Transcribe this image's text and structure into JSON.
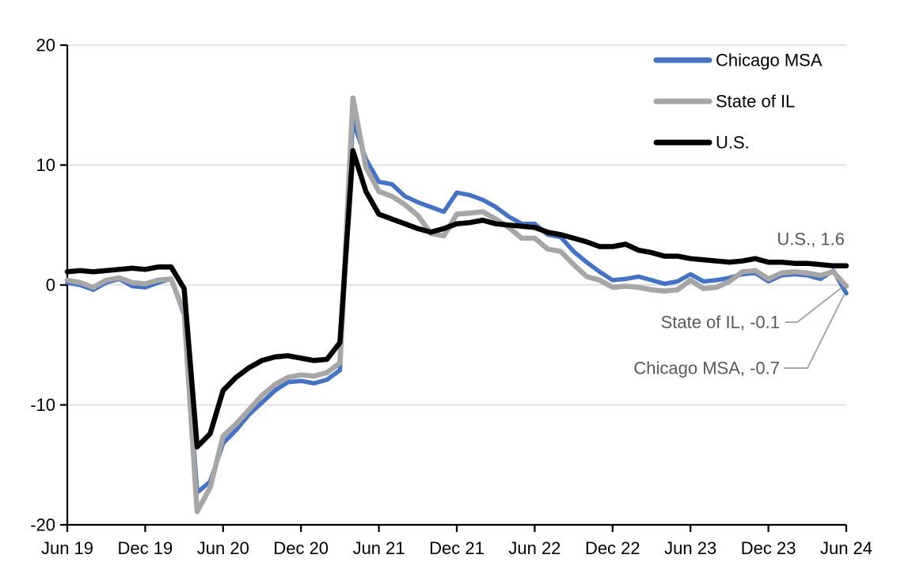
{
  "chart_data": {
    "type": "line",
    "title": "",
    "xlabel": "",
    "ylabel": "",
    "ylim": [
      -20,
      20
    ],
    "y_ticks": [
      -20,
      -10,
      0,
      10,
      20
    ],
    "y_tick_labels": [
      "-20",
      "-10",
      "0",
      "10",
      "20"
    ],
    "x_tick_labels": [
      "Jun 19",
      "Dec 19",
      "Jun 20",
      "Dec 20",
      "Jun 21",
      "Dec 21",
      "Jun 22",
      "Dec 22",
      "Jun 23",
      "Dec 23",
      "Jun 24"
    ],
    "grid": "horizontal",
    "legend_position": "top-right",
    "months": [
      "Jun 19",
      "Jul 19",
      "Aug 19",
      "Sep 19",
      "Oct 19",
      "Nov 19",
      "Dec 19",
      "Jan 20",
      "Feb 20",
      "Mar 20",
      "Apr 20",
      "May 20",
      "Jun 20",
      "Jul 20",
      "Aug 20",
      "Sep 20",
      "Oct 20",
      "Nov 20",
      "Dec 20",
      "Jan 21",
      "Feb 21",
      "Mar 21",
      "Apr 21",
      "May 21",
      "Jun 21",
      "Jul 21",
      "Aug 21",
      "Sep 21",
      "Oct 21",
      "Nov 21",
      "Dec 21",
      "Jan 22",
      "Feb 22",
      "Mar 22",
      "Apr 22",
      "May 22",
      "Jun 22",
      "Jul 22",
      "Aug 22",
      "Sep 22",
      "Oct 22",
      "Nov 22",
      "Dec 22",
      "Jan 23",
      "Feb 23",
      "Mar 23",
      "Apr 23",
      "May 23",
      "Jun 23",
      "Jul 23",
      "Aug 23",
      "Sep 23",
      "Oct 23",
      "Nov 23",
      "Dec 23",
      "Jan 24",
      "Feb 24",
      "Mar 24",
      "Apr 24",
      "May 24",
      "Jun 24"
    ],
    "series": [
      {
        "name": "Chicago MSA",
        "color": "#4472C4",
        "values": [
          0.2,
          0.0,
          -0.4,
          0.2,
          0.5,
          -0.1,
          -0.2,
          0.2,
          0.5,
          -2.5,
          -17.3,
          -16.4,
          -13.2,
          -12.1,
          -10.8,
          -9.8,
          -8.8,
          -8.1,
          -8.0,
          -8.2,
          -7.9,
          -7.1,
          13.7,
          10.5,
          8.6,
          8.4,
          7.4,
          6.9,
          6.5,
          6.1,
          7.7,
          7.5,
          7.1,
          6.5,
          5.7,
          5.1,
          5.1,
          4.2,
          4.0,
          2.8,
          1.9,
          1.1,
          0.4,
          0.5,
          0.7,
          0.4,
          0.1,
          0.3,
          0.9,
          0.3,
          0.4,
          0.6,
          0.9,
          1.0,
          0.3,
          0.8,
          0.9,
          0.8,
          0.5,
          1.2,
          -0.7
        ]
      },
      {
        "name": "State of IL",
        "color": "#A6A6A6",
        "values": [
          0.4,
          0.2,
          -0.2,
          0.4,
          0.6,
          0.2,
          0.1,
          0.4,
          0.5,
          -2.3,
          -18.9,
          -16.9,
          -12.6,
          -11.6,
          -10.4,
          -9.2,
          -8.3,
          -7.7,
          -7.5,
          -7.6,
          -7.3,
          -6.5,
          15.6,
          9.8,
          7.8,
          7.4,
          6.7,
          5.8,
          4.3,
          4.1,
          5.9,
          6.0,
          6.1,
          5.5,
          4.8,
          3.9,
          3.9,
          3.0,
          2.8,
          1.7,
          0.7,
          0.4,
          -0.2,
          -0.1,
          -0.2,
          -0.4,
          -0.5,
          -0.4,
          0.4,
          -0.3,
          -0.2,
          0.3,
          1.1,
          1.2,
          0.5,
          1.0,
          1.1,
          1.0,
          0.8,
          1.1,
          -0.1
        ]
      },
      {
        "name": "U.S.",
        "color": "#000000",
        "values": [
          1.1,
          1.2,
          1.1,
          1.2,
          1.3,
          1.4,
          1.3,
          1.5,
          1.5,
          -0.3,
          -13.5,
          -12.4,
          -8.8,
          -7.7,
          -6.9,
          -6.3,
          -6.0,
          -5.9,
          -6.1,
          -6.3,
          -6.2,
          -4.8,
          11.2,
          7.8,
          5.9,
          5.5,
          5.1,
          4.7,
          4.4,
          4.7,
          5.1,
          5.2,
          5.4,
          5.1,
          5.0,
          4.9,
          4.8,
          4.4,
          4.2,
          3.9,
          3.6,
          3.2,
          3.2,
          3.4,
          2.9,
          2.7,
          2.4,
          2.4,
          2.2,
          2.1,
          2.0,
          1.9,
          2.0,
          2.2,
          1.9,
          1.9,
          1.8,
          1.8,
          1.7,
          1.6,
          1.6
        ]
      }
    ],
    "annotations": [
      {
        "id": "us",
        "text": "U.S., 1.6"
      },
      {
        "id": "il",
        "text": "State of IL, -0.1"
      },
      {
        "id": "chicago",
        "text": "Chicago MSA, -0.7"
      }
    ]
  },
  "colors": {
    "gridline": "#D9D9D9",
    "axis": "#000000",
    "annotation_text": "#595959",
    "leader_line": "#A6A6A6",
    "legend_text": "#000000",
    "tick_text": "#000000"
  }
}
